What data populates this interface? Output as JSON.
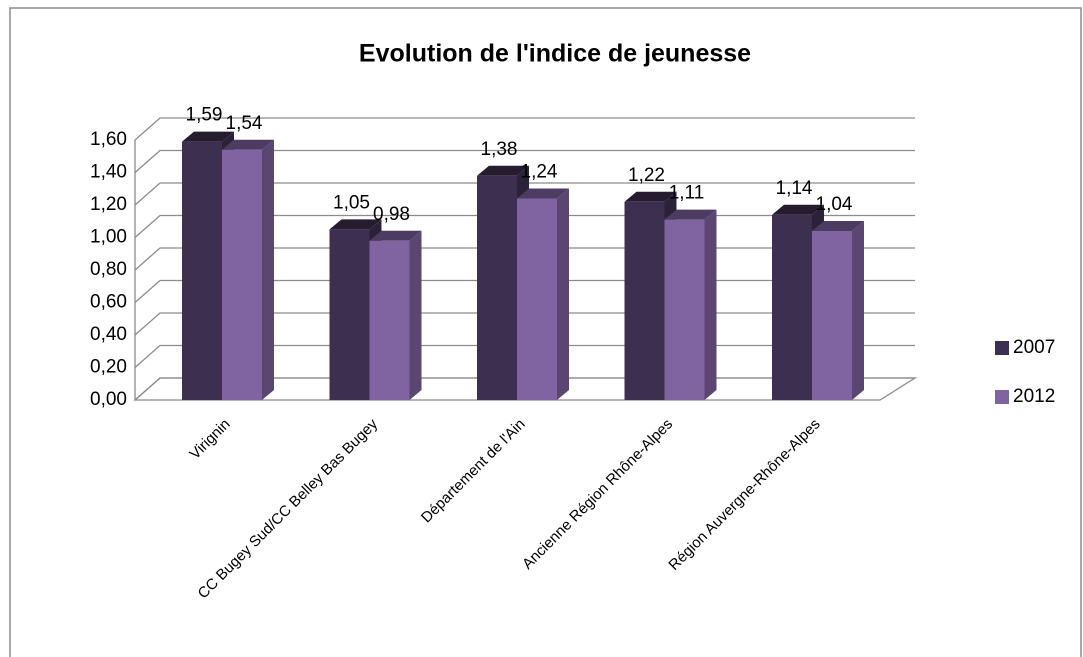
{
  "chart_data": {
    "type": "bar3d",
    "title": "Evolution de l'indice de jeunesse",
    "categories": [
      "Virignin",
      "CC Bugey Sud/CC Belley Bas Bugey",
      "Département de l'Ain",
      "Ancienne Région Rhône-Alpes",
      "Région Auvergne-Rhône-Alpes"
    ],
    "series": [
      {
        "name": "2007",
        "color": "#3d2f50",
        "values": [
          1.59,
          1.05,
          1.38,
          1.22,
          1.14
        ],
        "value_labels": [
          "1,59",
          "1,05",
          "1,38",
          "1,22",
          "1,14"
        ]
      },
      {
        "name": "2012",
        "color": "#8064a2",
        "values": [
          1.54,
          0.98,
          1.24,
          1.11,
          1.04
        ],
        "value_labels": [
          "1,54",
          "0,98",
          "1,24",
          "1,11",
          "1,04"
        ]
      }
    ],
    "ylim": [
      0,
      1.6
    ],
    "yticks": [
      {
        "value": 0,
        "label": "0,00"
      },
      {
        "value": 0.2,
        "label": "0,20"
      },
      {
        "value": 0.4,
        "label": "0,40"
      },
      {
        "value": 0.6,
        "label": "0,60"
      },
      {
        "value": 0.8,
        "label": "0,80"
      },
      {
        "value": 1,
        "label": "1,00"
      },
      {
        "value": 1.2,
        "label": "1,20"
      },
      {
        "value": 1.4,
        "label": "1,40"
      },
      {
        "value": 1.6,
        "label": "1,60"
      }
    ],
    "grid": true,
    "legend": "right"
  }
}
